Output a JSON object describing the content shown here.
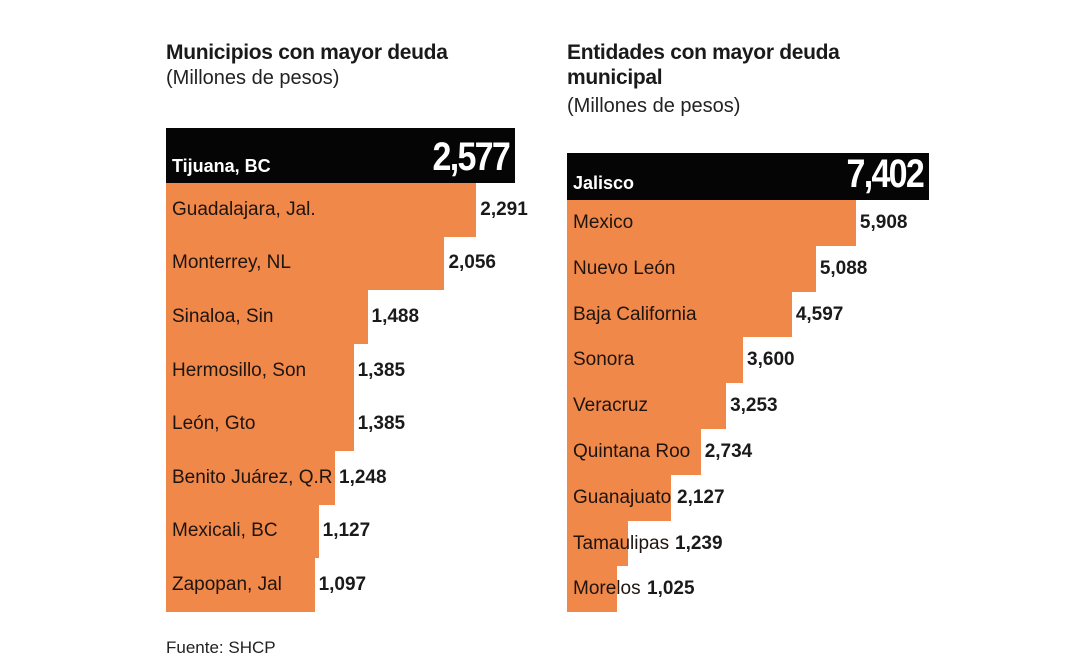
{
  "source": "Fuente: SHCP",
  "bar_color": "#f0884a",
  "top_color": "#050505",
  "chart_data": [
    {
      "type": "bar",
      "orientation": "horizontal",
      "title": "Municipios con mayor deuda",
      "subtitle": "(Millones de pesos)",
      "categories": [
        "Tijuana, BC",
        "Guadalajara, Jal.",
        "Monterrey, NL",
        "Sinaloa, Sin",
        "Hermosillo, Son",
        "León, Gto",
        "Benito Juárez, Q.R",
        "Mexicali, BC",
        "Zapopan, Jal"
      ],
      "values": [
        2577,
        2291,
        2056,
        1488,
        1385,
        1385,
        1248,
        1127,
        1097
      ],
      "labels": [
        "2,577",
        "2,291",
        "2,056",
        "1,488",
        "1,385",
        "1,385",
        "1,248",
        "1,127",
        "1,097"
      ]
    },
    {
      "type": "bar",
      "orientation": "horizontal",
      "title": "Entidades con mayor deuda municipal",
      "subtitle": "(Millones de pesos)",
      "categories": [
        "Jalisco",
        "Mexico",
        "Nuevo León",
        "Baja California",
        "Sonora",
        "Veracruz",
        "Quintana Roo",
        "Guanajuato",
        "Tamaulipas",
        "Morelos"
      ],
      "values": [
        7402,
        5908,
        5088,
        4597,
        3600,
        3253,
        2734,
        2127,
        1239,
        1025
      ],
      "labels": [
        "7,402",
        "5,908",
        "5,088",
        "4,597",
        "3,600",
        "3,253",
        "2,734",
        "2,127",
        "1,239",
        "1,025"
      ]
    }
  ]
}
